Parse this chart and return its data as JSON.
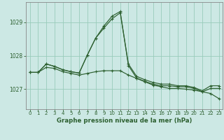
{
  "title": "Graphe pression niveau de la mer (hPa)",
  "background_color": "#cce8e4",
  "grid_color": "#99ccbb",
  "line_color": "#2d6030",
  "xlim": [
    -0.5,
    23.5
  ],
  "ylim": [
    1026.4,
    1029.6
  ],
  "yticks": [
    1027,
    1028,
    1029
  ],
  "xticks": [
    0,
    1,
    2,
    3,
    4,
    5,
    6,
    7,
    8,
    9,
    10,
    11,
    12,
    13,
    14,
    15,
    16,
    17,
    18,
    19,
    20,
    21,
    22,
    23
  ],
  "series": [
    [
      1027.5,
      1027.5,
      1027.75,
      1027.68,
      1027.58,
      1027.52,
      1027.48,
      1028.02,
      1028.52,
      1028.82,
      1029.1,
      1029.28,
      1027.75,
      1027.38,
      1027.28,
      1027.2,
      1027.15,
      1027.15,
      1027.1,
      1027.1,
      1027.05,
      1026.95,
      1027.1,
      1027.1
    ],
    [
      1027.5,
      1027.5,
      1027.75,
      1027.68,
      1027.58,
      1027.52,
      1027.48,
      1028.02,
      1028.52,
      1028.88,
      1029.18,
      1029.32,
      1027.7,
      1027.33,
      1027.23,
      1027.15,
      1027.1,
      1027.1,
      1027.07,
      1027.07,
      1027.02,
      1026.92,
      1027.02,
      1027.02
    ],
    [
      1027.5,
      1027.5,
      1027.65,
      1027.62,
      1027.52,
      1027.47,
      1027.42,
      1027.47,
      1027.52,
      1027.55,
      1027.55,
      1027.55,
      1027.42,
      1027.32,
      1027.22,
      1027.12,
      1027.07,
      1027.02,
      1027.02,
      1027.0,
      1026.97,
      1026.92,
      1026.87,
      1026.72
    ]
  ]
}
